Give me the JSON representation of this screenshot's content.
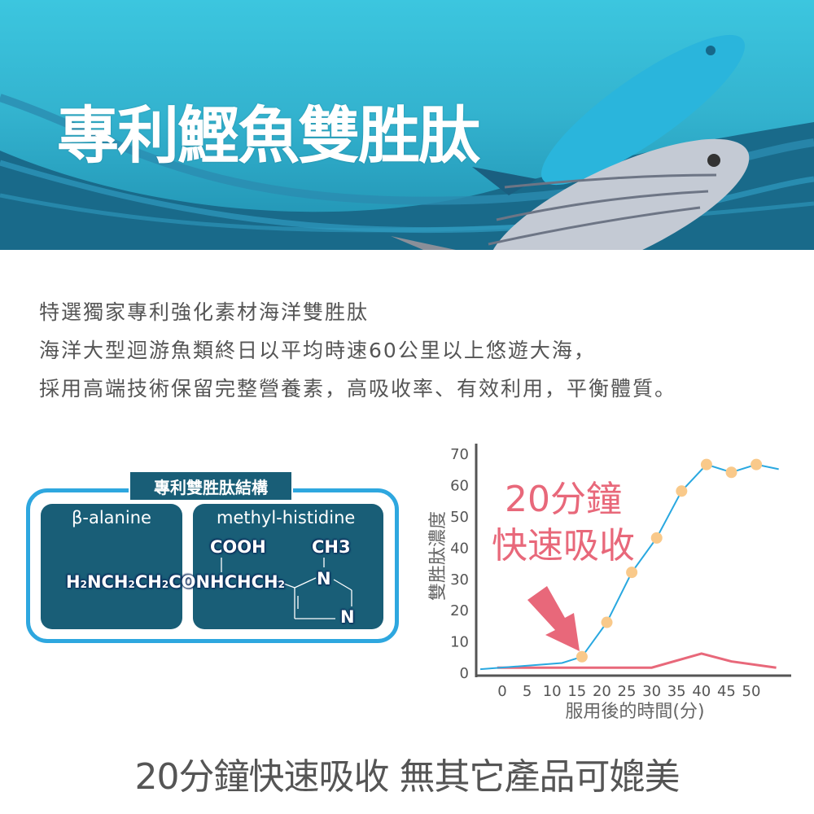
{
  "banner": {
    "title": "專利鰹魚雙胜肽"
  },
  "intro": [
    "特選獨家專利強化素材海洋雙胜肽",
    "海洋大型迴游魚類終日以平均時速60公里以上悠遊大海，",
    "採用高端技術保留完整營養素，高吸收率、有效利用，平衡體質。"
  ],
  "structure": {
    "title": "專利雙胜肽結構",
    "left_label": "β-alanine",
    "right_label": "methyl-histidine",
    "cooh": "COOH",
    "ch3": "CH3",
    "n1": "N",
    "n2": "N"
  },
  "chart_data": {
    "type": "line",
    "ylabel": "雙胜肽濃度",
    "xlabel": "服用後的時間(分)",
    "yticks": [
      0,
      10,
      20,
      30,
      40,
      50,
      60,
      70
    ],
    "xticks": [
      0,
      5,
      10,
      15,
      20,
      25,
      30,
      35,
      40,
      45,
      50
    ],
    "ylim": [
      0,
      70
    ],
    "grid": false,
    "series": [
      {
        "color": "#29a8e0",
        "marker_color": "#f9c98a",
        "x": [
          -4.4,
          12,
          16,
          21,
          26,
          31,
          36,
          41,
          46,
          51,
          55.5
        ],
        "y": [
          1,
          3,
          5,
          16,
          32,
          43,
          58,
          66.5,
          64,
          66.5,
          65
        ],
        "markers": [
          false,
          false,
          true,
          true,
          true,
          true,
          true,
          true,
          true,
          true,
          false
        ]
      },
      {
        "color": "#e8687a",
        "x": [
          -1,
          30,
          40,
          46,
          55
        ],
        "y": [
          1.5,
          1.5,
          6,
          3.5,
          1.5
        ]
      }
    ],
    "annotation": [
      "20分鐘",
      "快速吸收"
    ],
    "annotation_color": "#e8687a"
  },
  "footer": "20分鐘快速吸收  無其它產品可媲美"
}
